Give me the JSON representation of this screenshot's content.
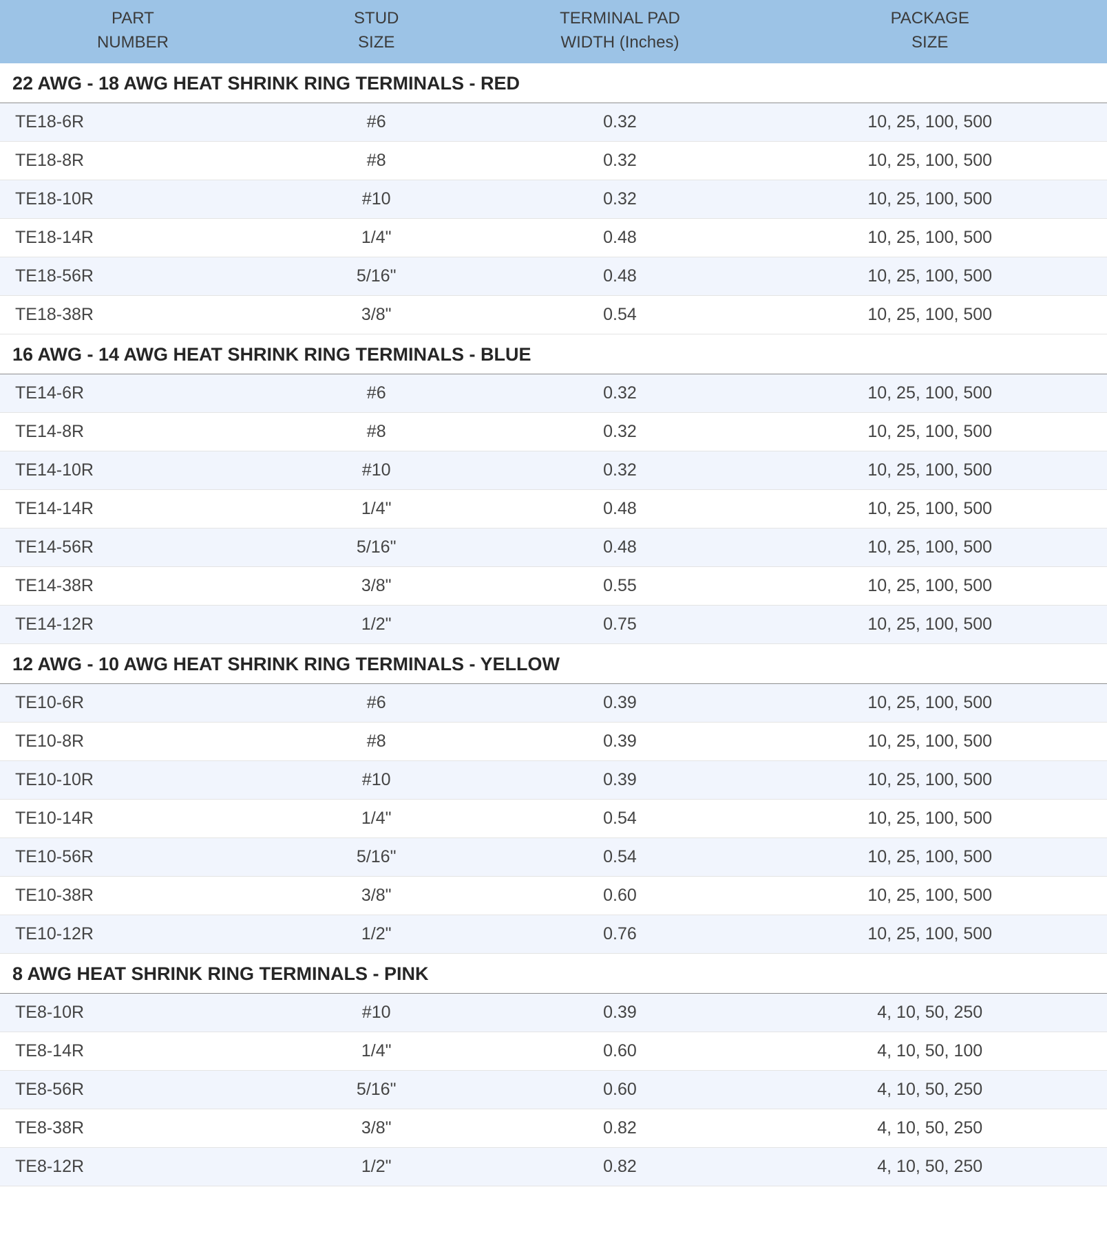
{
  "table": {
    "colors": {
      "header_bg": "#9cc3e6",
      "header_text": "#3b3b3b",
      "section_text": "#262626",
      "section_border": "#8e8e8e",
      "row_text": "#444444",
      "row_odd_bg": "#f1f5fd",
      "row_even_bg": "#ffffff",
      "row_border": "#e4e4e4"
    },
    "fonts": {
      "header_size_pt": 18,
      "section_size_pt": 20,
      "cell_size_pt": 19,
      "family": "Verdana, Geneva, Tahoma, sans-serif"
    },
    "columns": [
      {
        "id": "part",
        "line1": "PART",
        "line2": "NUMBER",
        "width_pct": 24,
        "align": "left"
      },
      {
        "id": "stud",
        "line1": "STUD",
        "line2": "SIZE",
        "width_pct": 20,
        "align": "center"
      },
      {
        "id": "width",
        "line1": "TERMINAL PAD",
        "line2": "WIDTH (Inches)",
        "width_pct": 24,
        "align": "center"
      },
      {
        "id": "package",
        "line1": "PACKAGE",
        "line2": "SIZE",
        "width_pct": 32,
        "align": "center"
      }
    ],
    "sections": [
      {
        "title": "22 AWG - 18 AWG  HEAT SHRINK RING TERMINALS - RED",
        "rows": [
          {
            "part": "TE18-6R",
            "stud": "#6",
            "width": "0.32",
            "package": "10, 25, 100, 500"
          },
          {
            "part": "TE18-8R",
            "stud": "#8",
            "width": "0.32",
            "package": "10, 25, 100, 500"
          },
          {
            "part": "TE18-10R",
            "stud": "#10",
            "width": "0.32",
            "package": "10, 25, 100, 500"
          },
          {
            "part": "TE18-14R",
            "stud": "1/4\"",
            "width": "0.48",
            "package": "10, 25, 100, 500"
          },
          {
            "part": "TE18-56R",
            "stud": "5/16\"",
            "width": "0.48",
            "package": "10, 25, 100, 500"
          },
          {
            "part": "TE18-38R",
            "stud": "3/8\"",
            "width": "0.54",
            "package": "10, 25, 100, 500"
          }
        ]
      },
      {
        "title": "16 AWG - 14 AWG  HEAT SHRINK RING TERMINALS - BLUE",
        "rows": [
          {
            "part": "TE14-6R",
            "stud": "#6",
            "width": "0.32",
            "package": "10, 25, 100, 500"
          },
          {
            "part": "TE14-8R",
            "stud": "#8",
            "width": "0.32",
            "package": "10, 25, 100, 500"
          },
          {
            "part": "TE14-10R",
            "stud": "#10",
            "width": "0.32",
            "package": "10, 25, 100, 500"
          },
          {
            "part": "TE14-14R",
            "stud": "1/4\"",
            "width": "0.48",
            "package": "10, 25, 100, 500"
          },
          {
            "part": "TE14-56R",
            "stud": "5/16\"",
            "width": "0.48",
            "package": "10, 25, 100, 500"
          },
          {
            "part": "TE14-38R",
            "stud": "3/8\"",
            "width": "0.55",
            "package": "10, 25, 100, 500"
          },
          {
            "part": "TE14-12R",
            "stud": "1/2\"",
            "width": "0.75",
            "package": "10, 25, 100, 500"
          }
        ]
      },
      {
        "title": "12 AWG - 10 AWG  HEAT SHRINK RING TERMINALS - YELLOW",
        "rows": [
          {
            "part": "TE10-6R",
            "stud": "#6",
            "width": "0.39",
            "package": "10, 25, 100, 500"
          },
          {
            "part": "TE10-8R",
            "stud": "#8",
            "width": "0.39",
            "package": "10, 25, 100, 500"
          },
          {
            "part": "TE10-10R",
            "stud": "#10",
            "width": "0.39",
            "package": "10, 25, 100, 500"
          },
          {
            "part": "TE10-14R",
            "stud": "1/4\"",
            "width": "0.54",
            "package": "10, 25, 100, 500"
          },
          {
            "part": "TE10-56R",
            "stud": "5/16\"",
            "width": "0.54",
            "package": "10, 25, 100, 500"
          },
          {
            "part": "TE10-38R",
            "stud": "3/8\"",
            "width": "0.60",
            "package": "10, 25, 100, 500"
          },
          {
            "part": "TE10-12R",
            "stud": "1/2\"",
            "width": "0.76",
            "package": "10, 25, 100, 500"
          }
        ]
      },
      {
        "title": "8 AWG  HEAT SHRINK RING TERMINALS - PINK",
        "rows": [
          {
            "part": "TE8-10R",
            "stud": "#10",
            "width": "0.39",
            "package": "4, 10, 50, 250"
          },
          {
            "part": "TE8-14R",
            "stud": "1/4\"",
            "width": "0.60",
            "package": "4, 10, 50, 100"
          },
          {
            "part": "TE8-56R",
            "stud": "5/16\"",
            "width": "0.60",
            "package": "4, 10, 50, 250"
          },
          {
            "part": "TE8-38R",
            "stud": "3/8\"",
            "width": "0.82",
            "package": "4, 10, 50, 250"
          },
          {
            "part": "TE8-12R",
            "stud": "1/2\"",
            "width": "0.82",
            "package": "4, 10, 50, 250"
          }
        ]
      }
    ]
  }
}
